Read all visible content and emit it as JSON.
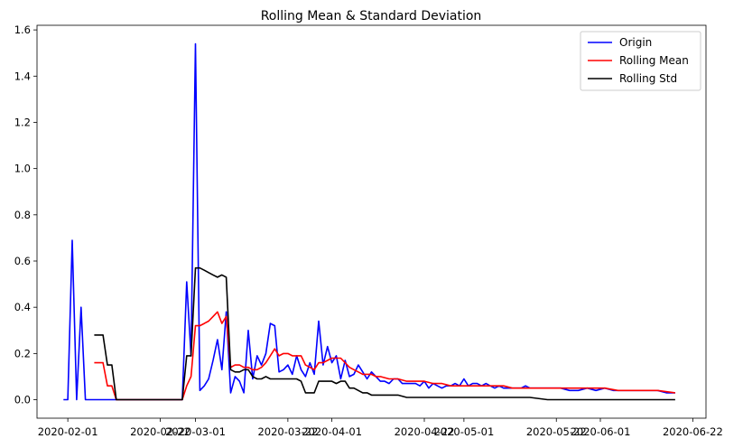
{
  "chart_data": {
    "type": "line",
    "title": "Rolling Mean & Standard Deviation",
    "xlabel": "",
    "ylabel": "",
    "xlim": [
      "2020-01-25",
      "2020-06-25"
    ],
    "ylim": [
      -0.08,
      1.62
    ],
    "x_ticks": [
      "2020-02-01",
      "2020-02-22",
      "2020-03-01",
      "2020-03-22",
      "2020-04-01",
      "2020-04-22",
      "2020-05-01",
      "2020-05-22",
      "2020-06-01",
      "2020-06-22"
    ],
    "y_ticks": [
      "0.0",
      "0.2",
      "0.4",
      "0.6",
      "0.8",
      "1.0",
      "1.2",
      "1.4",
      "1.6"
    ],
    "legend_position": "top-right",
    "grid": false,
    "series": [
      {
        "name": "Origin",
        "color": "#0000ff",
        "points": [
          [
            "2020-01-31",
            0.0
          ],
          [
            "2020-02-01",
            0.0
          ],
          [
            "2020-02-02",
            0.69
          ],
          [
            "2020-02-03",
            0.0
          ],
          [
            "2020-02-04",
            0.4
          ],
          [
            "2020-02-05",
            0.0
          ],
          [
            "2020-02-06",
            0.0
          ],
          [
            "2020-02-07",
            0.0
          ],
          [
            "2020-02-08",
            0.0
          ],
          [
            "2020-02-09",
            0.0
          ],
          [
            "2020-02-10",
            0.0
          ],
          [
            "2020-02-11",
            0.0
          ],
          [
            "2020-02-12",
            0.0
          ],
          [
            "2020-02-15",
            0.0
          ],
          [
            "2020-02-20",
            0.0
          ],
          [
            "2020-02-25",
            0.0
          ],
          [
            "2020-02-27",
            0.0
          ],
          [
            "2020-02-28",
            0.51
          ],
          [
            "2020-02-29",
            0.19
          ],
          [
            "2020-03-01",
            1.54
          ],
          [
            "2020-03-02",
            0.04
          ],
          [
            "2020-03-03",
            0.06
          ],
          [
            "2020-03-04",
            0.09
          ],
          [
            "2020-03-05",
            0.17
          ],
          [
            "2020-03-06",
            0.26
          ],
          [
            "2020-03-07",
            0.13
          ],
          [
            "2020-03-08",
            0.38
          ],
          [
            "2020-03-09",
            0.03
          ],
          [
            "2020-03-10",
            0.1
          ],
          [
            "2020-03-11",
            0.08
          ],
          [
            "2020-03-12",
            0.03
          ],
          [
            "2020-03-13",
            0.3
          ],
          [
            "2020-03-14",
            0.09
          ],
          [
            "2020-03-15",
            0.19
          ],
          [
            "2020-03-16",
            0.15
          ],
          [
            "2020-03-17",
            0.2
          ],
          [
            "2020-03-18",
            0.33
          ],
          [
            "2020-03-19",
            0.32
          ],
          [
            "2020-03-20",
            0.12
          ],
          [
            "2020-03-21",
            0.13
          ],
          [
            "2020-03-22",
            0.15
          ],
          [
            "2020-03-23",
            0.11
          ],
          [
            "2020-03-24",
            0.19
          ],
          [
            "2020-03-25",
            0.13
          ],
          [
            "2020-03-26",
            0.1
          ],
          [
            "2020-03-27",
            0.16
          ],
          [
            "2020-03-28",
            0.11
          ],
          [
            "2020-03-29",
            0.34
          ],
          [
            "2020-03-30",
            0.15
          ],
          [
            "2020-03-31",
            0.23
          ],
          [
            "2020-04-01",
            0.16
          ],
          [
            "2020-04-02",
            0.19
          ],
          [
            "2020-04-03",
            0.09
          ],
          [
            "2020-04-04",
            0.17
          ],
          [
            "2020-04-05",
            0.1
          ],
          [
            "2020-04-06",
            0.11
          ],
          [
            "2020-04-07",
            0.15
          ],
          [
            "2020-04-08",
            0.12
          ],
          [
            "2020-04-09",
            0.09
          ],
          [
            "2020-04-10",
            0.12
          ],
          [
            "2020-04-11",
            0.1
          ],
          [
            "2020-04-12",
            0.08
          ],
          [
            "2020-04-13",
            0.08
          ],
          [
            "2020-04-14",
            0.07
          ],
          [
            "2020-04-15",
            0.09
          ],
          [
            "2020-04-16",
            0.09
          ],
          [
            "2020-04-17",
            0.07
          ],
          [
            "2020-04-18",
            0.07
          ],
          [
            "2020-04-19",
            0.07
          ],
          [
            "2020-04-20",
            0.07
          ],
          [
            "2020-04-21",
            0.06
          ],
          [
            "2020-04-22",
            0.08
          ],
          [
            "2020-04-23",
            0.05
          ],
          [
            "2020-04-24",
            0.07
          ],
          [
            "2020-04-25",
            0.06
          ],
          [
            "2020-04-26",
            0.05
          ],
          [
            "2020-04-27",
            0.06
          ],
          [
            "2020-04-28",
            0.06
          ],
          [
            "2020-04-29",
            0.07
          ],
          [
            "2020-04-30",
            0.06
          ],
          [
            "2020-05-01",
            0.09
          ],
          [
            "2020-05-02",
            0.06
          ],
          [
            "2020-05-03",
            0.07
          ],
          [
            "2020-05-04",
            0.07
          ],
          [
            "2020-05-05",
            0.06
          ],
          [
            "2020-05-06",
            0.07
          ],
          [
            "2020-05-07",
            0.06
          ],
          [
            "2020-05-08",
            0.05
          ],
          [
            "2020-05-09",
            0.06
          ],
          [
            "2020-05-10",
            0.05
          ],
          [
            "2020-05-11",
            0.05
          ],
          [
            "2020-05-12",
            0.05
          ],
          [
            "2020-05-13",
            0.05
          ],
          [
            "2020-05-14",
            0.05
          ],
          [
            "2020-05-15",
            0.06
          ],
          [
            "2020-05-16",
            0.05
          ],
          [
            "2020-05-17",
            0.05
          ],
          [
            "2020-05-18",
            0.05
          ],
          [
            "2020-05-19",
            0.05
          ],
          [
            "2020-05-20",
            0.05
          ],
          [
            "2020-05-21",
            0.05
          ],
          [
            "2020-05-22",
            0.05
          ],
          [
            "2020-05-23",
            0.05
          ],
          [
            "2020-05-25",
            0.04
          ],
          [
            "2020-05-27",
            0.04
          ],
          [
            "2020-05-29",
            0.05
          ],
          [
            "2020-05-31",
            0.04
          ],
          [
            "2020-06-02",
            0.05
          ],
          [
            "2020-06-04",
            0.04
          ],
          [
            "2020-06-06",
            0.04
          ],
          [
            "2020-06-08",
            0.04
          ],
          [
            "2020-06-10",
            0.04
          ],
          [
            "2020-06-12",
            0.04
          ],
          [
            "2020-06-14",
            0.04
          ],
          [
            "2020-06-16",
            0.03
          ],
          [
            "2020-06-18",
            0.03
          ]
        ]
      },
      {
        "name": "Rolling Mean",
        "color": "#ff0000",
        "points": [
          [
            "2020-02-07",
            0.16
          ],
          [
            "2020-02-08",
            0.16
          ],
          [
            "2020-02-09",
            0.16
          ],
          [
            "2020-02-10",
            0.06
          ],
          [
            "2020-02-11",
            0.06
          ],
          [
            "2020-02-12",
            0.0
          ],
          [
            "2020-02-15",
            0.0
          ],
          [
            "2020-02-20",
            0.0
          ],
          [
            "2020-02-25",
            0.0
          ],
          [
            "2020-02-27",
            0.0
          ],
          [
            "2020-02-28",
            0.06
          ],
          [
            "2020-02-29",
            0.1
          ],
          [
            "2020-03-01",
            0.32
          ],
          [
            "2020-03-02",
            0.32
          ],
          [
            "2020-03-03",
            0.33
          ],
          [
            "2020-03-04",
            0.34
          ],
          [
            "2020-03-05",
            0.36
          ],
          [
            "2020-03-06",
            0.38
          ],
          [
            "2020-03-07",
            0.33
          ],
          [
            "2020-03-08",
            0.36
          ],
          [
            "2020-03-09",
            0.14
          ],
          [
            "2020-03-10",
            0.15
          ],
          [
            "2020-03-11",
            0.15
          ],
          [
            "2020-03-12",
            0.14
          ],
          [
            "2020-03-13",
            0.14
          ],
          [
            "2020-03-14",
            0.13
          ],
          [
            "2020-03-15",
            0.13
          ],
          [
            "2020-03-16",
            0.14
          ],
          [
            "2020-03-17",
            0.16
          ],
          [
            "2020-03-18",
            0.19
          ],
          [
            "2020-03-19",
            0.22
          ],
          [
            "2020-03-20",
            0.19
          ],
          [
            "2020-03-21",
            0.2
          ],
          [
            "2020-03-22",
            0.2
          ],
          [
            "2020-03-23",
            0.19
          ],
          [
            "2020-03-24",
            0.19
          ],
          [
            "2020-03-25",
            0.19
          ],
          [
            "2020-03-26",
            0.15
          ],
          [
            "2020-03-27",
            0.14
          ],
          [
            "2020-03-28",
            0.13
          ],
          [
            "2020-03-29",
            0.16
          ],
          [
            "2020-03-30",
            0.16
          ],
          [
            "2020-03-31",
            0.17
          ],
          [
            "2020-04-01",
            0.18
          ],
          [
            "2020-04-02",
            0.18
          ],
          [
            "2020-04-03",
            0.18
          ],
          [
            "2020-04-04",
            0.16
          ],
          [
            "2020-04-05",
            0.14
          ],
          [
            "2020-04-06",
            0.13
          ],
          [
            "2020-04-07",
            0.12
          ],
          [
            "2020-04-08",
            0.11
          ],
          [
            "2020-04-09",
            0.11
          ],
          [
            "2020-04-10",
            0.11
          ],
          [
            "2020-04-11",
            0.1
          ],
          [
            "2020-04-12",
            0.1
          ],
          [
            "2020-04-14",
            0.09
          ],
          [
            "2020-04-16",
            0.09
          ],
          [
            "2020-04-18",
            0.08
          ],
          [
            "2020-04-20",
            0.08
          ],
          [
            "2020-04-22",
            0.08
          ],
          [
            "2020-04-24",
            0.07
          ],
          [
            "2020-04-26",
            0.07
          ],
          [
            "2020-04-28",
            0.06
          ],
          [
            "2020-04-30",
            0.06
          ],
          [
            "2020-05-02",
            0.06
          ],
          [
            "2020-05-04",
            0.06
          ],
          [
            "2020-05-06",
            0.06
          ],
          [
            "2020-05-08",
            0.06
          ],
          [
            "2020-05-10",
            0.06
          ],
          [
            "2020-05-12",
            0.05
          ],
          [
            "2020-05-15",
            0.05
          ],
          [
            "2020-05-18",
            0.05
          ],
          [
            "2020-05-21",
            0.05
          ],
          [
            "2020-05-24",
            0.05
          ],
          [
            "2020-05-27",
            0.05
          ],
          [
            "2020-05-30",
            0.05
          ],
          [
            "2020-06-02",
            0.05
          ],
          [
            "2020-06-05",
            0.04
          ],
          [
            "2020-06-08",
            0.04
          ],
          [
            "2020-06-11",
            0.04
          ],
          [
            "2020-06-14",
            0.04
          ],
          [
            "2020-06-18",
            0.03
          ]
        ]
      },
      {
        "name": "Rolling Std",
        "color": "#000000",
        "points": [
          [
            "2020-02-07",
            0.28
          ],
          [
            "2020-02-08",
            0.28
          ],
          [
            "2020-02-09",
            0.28
          ],
          [
            "2020-02-10",
            0.15
          ],
          [
            "2020-02-11",
            0.15
          ],
          [
            "2020-02-12",
            0.0
          ],
          [
            "2020-02-15",
            0.0
          ],
          [
            "2020-02-20",
            0.0
          ],
          [
            "2020-02-25",
            0.0
          ],
          [
            "2020-02-27",
            0.0
          ],
          [
            "2020-02-28",
            0.19
          ],
          [
            "2020-02-29",
            0.19
          ],
          [
            "2020-03-01",
            0.57
          ],
          [
            "2020-03-02",
            0.57
          ],
          [
            "2020-03-03",
            0.56
          ],
          [
            "2020-03-04",
            0.55
          ],
          [
            "2020-03-05",
            0.54
          ],
          [
            "2020-03-06",
            0.53
          ],
          [
            "2020-03-07",
            0.54
          ],
          [
            "2020-03-08",
            0.53
          ],
          [
            "2020-03-09",
            0.13
          ],
          [
            "2020-03-10",
            0.12
          ],
          [
            "2020-03-11",
            0.12
          ],
          [
            "2020-03-12",
            0.13
          ],
          [
            "2020-03-13",
            0.13
          ],
          [
            "2020-03-14",
            0.1
          ],
          [
            "2020-03-15",
            0.09
          ],
          [
            "2020-03-16",
            0.09
          ],
          [
            "2020-03-17",
            0.1
          ],
          [
            "2020-03-18",
            0.09
          ],
          [
            "2020-03-19",
            0.09
          ],
          [
            "2020-03-20",
            0.09
          ],
          [
            "2020-03-21",
            0.09
          ],
          [
            "2020-03-22",
            0.09
          ],
          [
            "2020-03-23",
            0.09
          ],
          [
            "2020-03-24",
            0.09
          ],
          [
            "2020-03-25",
            0.08
          ],
          [
            "2020-03-26",
            0.03
          ],
          [
            "2020-03-27",
            0.03
          ],
          [
            "2020-03-28",
            0.03
          ],
          [
            "2020-03-29",
            0.08
          ],
          [
            "2020-03-30",
            0.08
          ],
          [
            "2020-03-31",
            0.08
          ],
          [
            "2020-04-01",
            0.08
          ],
          [
            "2020-04-02",
            0.07
          ],
          [
            "2020-04-03",
            0.08
          ],
          [
            "2020-04-04",
            0.08
          ],
          [
            "2020-04-05",
            0.05
          ],
          [
            "2020-04-06",
            0.05
          ],
          [
            "2020-04-07",
            0.04
          ],
          [
            "2020-04-08",
            0.03
          ],
          [
            "2020-04-09",
            0.03
          ],
          [
            "2020-04-10",
            0.02
          ],
          [
            "2020-04-12",
            0.02
          ],
          [
            "2020-04-14",
            0.02
          ],
          [
            "2020-04-16",
            0.02
          ],
          [
            "2020-04-18",
            0.01
          ],
          [
            "2020-04-20",
            0.01
          ],
          [
            "2020-04-22",
            0.01
          ],
          [
            "2020-04-25",
            0.01
          ],
          [
            "2020-04-28",
            0.01
          ],
          [
            "2020-05-01",
            0.01
          ],
          [
            "2020-05-04",
            0.01
          ],
          [
            "2020-05-07",
            0.01
          ],
          [
            "2020-05-10",
            0.01
          ],
          [
            "2020-05-13",
            0.01
          ],
          [
            "2020-05-16",
            0.01
          ],
          [
            "2020-05-20",
            0.0
          ],
          [
            "2020-05-24",
            0.0
          ],
          [
            "2020-05-28",
            0.0
          ],
          [
            "2020-06-01",
            0.0
          ],
          [
            "2020-06-05",
            0.0
          ],
          [
            "2020-06-10",
            0.0
          ],
          [
            "2020-06-14",
            0.0
          ],
          [
            "2020-06-18",
            0.0
          ]
        ]
      }
    ]
  }
}
